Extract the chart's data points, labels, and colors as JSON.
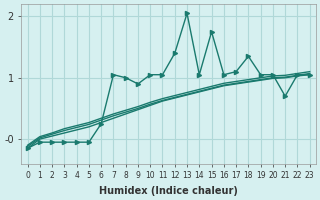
{
  "x": [
    0,
    1,
    2,
    3,
    4,
    5,
    6,
    7,
    8,
    9,
    10,
    11,
    12,
    13,
    14,
    15,
    16,
    17,
    18,
    19,
    20,
    21,
    22,
    23
  ],
  "y_main": [
    -0.15,
    -0.05,
    -0.05,
    -0.05,
    -0.05,
    -0.05,
    0.25,
    1.05,
    1.0,
    0.9,
    1.05,
    1.05,
    1.4,
    2.05,
    1.05,
    1.75,
    1.05,
    1.1,
    1.35,
    1.05,
    1.05,
    0.7,
    1.05,
    1.05
  ],
  "y_line1": [
    -0.15,
    0.0,
    0.05,
    0.1,
    0.15,
    0.2,
    0.27,
    0.34,
    0.41,
    0.48,
    0.55,
    0.62,
    0.67,
    0.72,
    0.77,
    0.82,
    0.87,
    0.9,
    0.93,
    0.96,
    0.99,
    1.0,
    1.03,
    1.05
  ],
  "y_line2": [
    -0.12,
    0.02,
    0.08,
    0.14,
    0.19,
    0.24,
    0.31,
    0.38,
    0.44,
    0.5,
    0.57,
    0.63,
    0.68,
    0.73,
    0.78,
    0.83,
    0.88,
    0.91,
    0.94,
    0.97,
    1.0,
    1.01,
    1.04,
    1.07
  ],
  "y_line3": [
    -0.1,
    0.04,
    0.1,
    0.17,
    0.22,
    0.27,
    0.34,
    0.41,
    0.47,
    0.53,
    0.6,
    0.66,
    0.71,
    0.76,
    0.81,
    0.86,
    0.91,
    0.94,
    0.97,
    1.0,
    1.03,
    1.04,
    1.07,
    1.1
  ],
  "bg_color": "#d6f0f0",
  "line_color": "#1a7a6e",
  "grid_color": "#b0d8d8",
  "xlabel": "Humidex (Indice chaleur)",
  "ylabel": "",
  "xlim": [
    -0.5,
    23.5
  ],
  "ylim": [
    -0.4,
    2.2
  ],
  "yticks": [
    0,
    1,
    2
  ],
  "ytick_labels": [
    "-0",
    "1",
    "2"
  ],
  "xticks": [
    0,
    1,
    2,
    3,
    4,
    5,
    6,
    7,
    8,
    9,
    10,
    11,
    12,
    13,
    14,
    15,
    16,
    17,
    18,
    19,
    20,
    21,
    22,
    23
  ]
}
